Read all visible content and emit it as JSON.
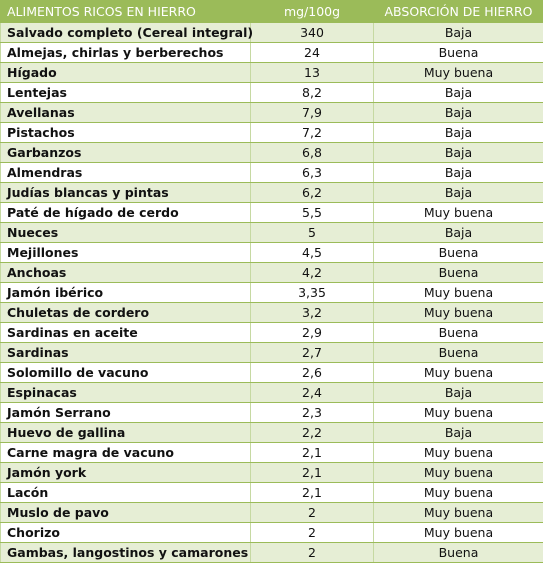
{
  "header": {
    "col_food": "ALIMENTOS RICOS EN HIERRO",
    "col_amount": "mg/100g",
    "col_absorption": "ABSORCIÓN DE HIERRO"
  },
  "rows": [
    {
      "food": "Salvado completo (Cereal integral)",
      "amount": "340",
      "absorption": "Baja"
    },
    {
      "food": "Almejas, chirlas y berberechos",
      "amount": "24",
      "absorption": "Buena"
    },
    {
      "food": "Hígado",
      "amount": "13",
      "absorption": "Muy buena"
    },
    {
      "food": "Lentejas",
      "amount": "8,2",
      "absorption": "Baja"
    },
    {
      "food": "Avellanas",
      "amount": "7,9",
      "absorption": "Baja"
    },
    {
      "food": "Pistachos",
      "amount": "7,2",
      "absorption": "Baja"
    },
    {
      "food": "Garbanzos",
      "amount": "6,8",
      "absorption": "Baja"
    },
    {
      "food": "Almendras",
      "amount": "6,3",
      "absorption": "Baja"
    },
    {
      "food": "Judías blancas y pintas",
      "amount": "6,2",
      "absorption": "Baja"
    },
    {
      "food": "Paté de hígado de cerdo",
      "amount": "5,5",
      "absorption": "Muy buena"
    },
    {
      "food": "Nueces",
      "amount": "5",
      "absorption": "Baja"
    },
    {
      "food": "Mejillones",
      "amount": "4,5",
      "absorption": "Buena"
    },
    {
      "food": "Anchoas",
      "amount": "4,2",
      "absorption": "Buena"
    },
    {
      "food": "Jamón ibérico",
      "amount": "3,35",
      "absorption": "Muy buena"
    },
    {
      "food": "Chuletas de cordero",
      "amount": "3,2",
      "absorption": "Muy buena"
    },
    {
      "food": "Sardinas en aceite",
      "amount": "2,9",
      "absorption": "Buena"
    },
    {
      "food": "Sardinas",
      "amount": "2,7",
      "absorption": "Buena"
    },
    {
      "food": "Solomillo de vacuno",
      "amount": "2,6",
      "absorption": "Muy buena"
    },
    {
      "food": "Espinacas",
      "amount": "2,4",
      "absorption": "Baja"
    },
    {
      "food": "Jamón Serrano",
      "amount": "2,3",
      "absorption": "Muy buena"
    },
    {
      "food": "Huevo de gallina",
      "amount": "2,2",
      "absorption": "Baja"
    },
    {
      "food": "Carne magra de vacuno",
      "amount": "2,1",
      "absorption": "Muy buena"
    },
    {
      "food": "Jamón york",
      "amount": "2,1",
      "absorption": "Muy buena"
    },
    {
      "food": "Lacón",
      "amount": "2,1",
      "absorption": "Muy buena"
    },
    {
      "food": "Muslo de pavo",
      "amount": "2",
      "absorption": "Muy buena"
    },
    {
      "food": "Chorizo",
      "amount": "2",
      "absorption": "Muy buena"
    },
    {
      "food": "Gambas, langostinos y camarones",
      "amount": "2",
      "absorption": "Buena"
    }
  ],
  "colors": {
    "header_bg": "#9bbb59",
    "row_band": "#e6eed5"
  }
}
